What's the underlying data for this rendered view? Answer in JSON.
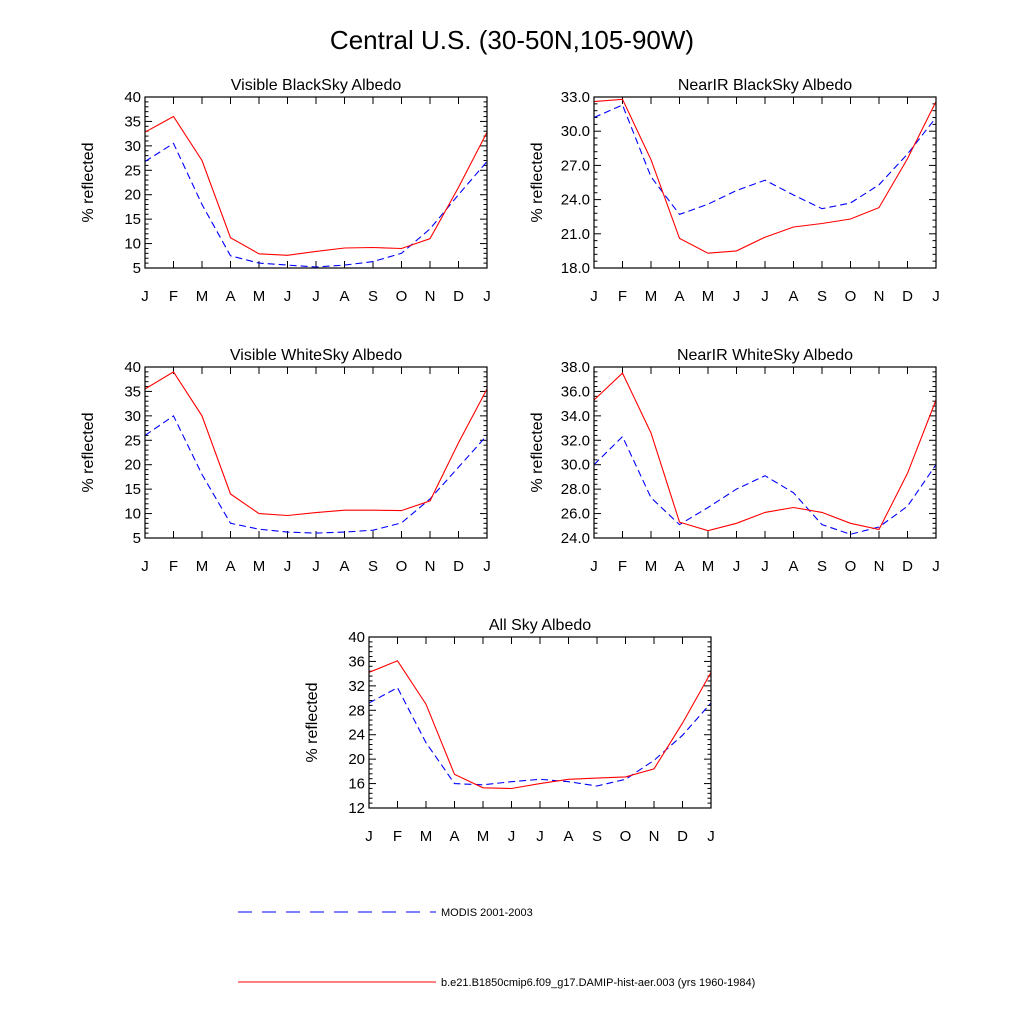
{
  "title": "Central U.S. (30-50N,105-90W)",
  "colors": {
    "model": "#ff0000",
    "obs": "#0000ff",
    "axis": "#000000"
  },
  "legend": [
    {
      "label": "MODIS 2001-2003",
      "style": "dashed",
      "color": "#0000ff"
    },
    {
      "label": "b.e21.B1850cmip6.f09_g17.DAMIP-hist-aer.003 (yrs 1960-1984)",
      "style": "solid",
      "color": "#ff0000"
    }
  ],
  "chart_data": [
    {
      "type": "line",
      "title": "Visible BlackSky Albedo",
      "ylabel": "% reflected",
      "xlabel": "",
      "categories": [
        "J",
        "F",
        "M",
        "A",
        "M",
        "J",
        "J",
        "A",
        "S",
        "O",
        "N",
        "D",
        "J"
      ],
      "ylim": [
        5,
        40
      ],
      "yticks": [
        "5",
        "10",
        "15",
        "20",
        "25",
        "30",
        "35",
        "40"
      ],
      "series": [
        {
          "name": "b.e21.B1850cmip6.f09_g17.DAMIP-hist-aer.003 (yrs 1960-1984)",
          "style": "solid",
          "color": "#ff0000",
          "values": [
            32.8,
            36.0,
            27.0,
            11.2,
            7.9,
            7.6,
            8.4,
            9.1,
            9.2,
            9.0,
            11.0,
            21.5,
            32.8
          ]
        },
        {
          "name": "MODIS 2001-2003",
          "style": "dashed",
          "color": "#0000ff",
          "values": [
            26.8,
            30.5,
            18.0,
            7.5,
            6.0,
            5.6,
            5.2,
            5.6,
            6.3,
            8.0,
            13.0,
            20.0,
            26.8
          ]
        }
      ]
    },
    {
      "type": "line",
      "title": "NearIR BlackSky Albedo",
      "ylabel": "% reflected",
      "xlabel": "",
      "categories": [
        "J",
        "F",
        "M",
        "A",
        "M",
        "J",
        "J",
        "A",
        "S",
        "O",
        "N",
        "D",
        "J"
      ],
      "ylim": [
        18,
        33
      ],
      "yticks": [
        "18.0",
        "21.0",
        "24.0",
        "27.0",
        "30.0",
        "33.0"
      ],
      "series": [
        {
          "name": "b.e21.B1850cmip6.f09_g17.DAMIP-hist-aer.003 (yrs 1960-1984)",
          "style": "solid",
          "color": "#ff0000",
          "values": [
            32.6,
            32.8,
            27.5,
            20.6,
            19.3,
            19.5,
            20.7,
            21.6,
            21.9,
            22.3,
            23.3,
            27.6,
            32.6
          ]
        },
        {
          "name": "MODIS 2001-2003",
          "style": "dashed",
          "color": "#0000ff",
          "values": [
            31.2,
            32.3,
            26.0,
            22.7,
            23.6,
            24.8,
            25.7,
            24.4,
            23.2,
            23.7,
            25.3,
            28.0,
            31.2
          ]
        }
      ]
    },
    {
      "type": "line",
      "title": "Visible WhiteSky Albedo",
      "ylabel": "% reflected",
      "xlabel": "",
      "categories": [
        "J",
        "F",
        "M",
        "A",
        "M",
        "J",
        "J",
        "A",
        "S",
        "O",
        "N",
        "D",
        "J"
      ],
      "ylim": [
        5,
        40
      ],
      "yticks": [
        "5",
        "10",
        "15",
        "20",
        "25",
        "30",
        "35",
        "40"
      ],
      "series": [
        {
          "name": "b.e21.B1850cmip6.f09_g17.DAMIP-hist-aer.003 (yrs 1960-1984)",
          "style": "solid",
          "color": "#ff0000",
          "values": [
            35.5,
            39.0,
            30.0,
            14.0,
            10.0,
            9.6,
            10.2,
            10.7,
            10.7,
            10.6,
            12.6,
            24.5,
            35.5
          ]
        },
        {
          "name": "MODIS 2001-2003",
          "style": "dashed",
          "color": "#0000ff",
          "values": [
            26.0,
            30.0,
            18.0,
            8.0,
            6.8,
            6.2,
            6.0,
            6.2,
            6.6,
            8.1,
            13.0,
            19.5,
            26.0
          ]
        }
      ]
    },
    {
      "type": "line",
      "title": "NearIR WhiteSky Albedo",
      "ylabel": "% reflected",
      "xlabel": "",
      "categories": [
        "J",
        "F",
        "M",
        "A",
        "M",
        "J",
        "J",
        "A",
        "S",
        "O",
        "N",
        "D",
        "J"
      ],
      "ylim": [
        24,
        38
      ],
      "yticks": [
        "24.0",
        "26.0",
        "28.0",
        "30.0",
        "32.0",
        "34.0",
        "36.0",
        "38.0"
      ],
      "series": [
        {
          "name": "b.e21.B1850cmip6.f09_g17.DAMIP-hist-aer.003 (yrs 1960-1984)",
          "style": "solid",
          "color": "#ff0000",
          "values": [
            35.3,
            37.5,
            32.6,
            25.3,
            24.6,
            25.2,
            26.1,
            26.5,
            26.1,
            25.2,
            24.7,
            29.3,
            35.3
          ]
        },
        {
          "name": "MODIS 2001-2003",
          "style": "dashed",
          "color": "#0000ff",
          "values": [
            30.0,
            32.3,
            27.3,
            25.1,
            26.5,
            28.0,
            29.1,
            27.7,
            25.1,
            24.3,
            24.9,
            26.6,
            30.0
          ]
        }
      ]
    },
    {
      "type": "line",
      "title": "All Sky Albedo",
      "ylabel": "% reflected",
      "xlabel": "",
      "categories": [
        "J",
        "F",
        "M",
        "A",
        "M",
        "J",
        "J",
        "A",
        "S",
        "O",
        "N",
        "D",
        "J"
      ],
      "ylim": [
        12,
        40
      ],
      "yticks": [
        "12",
        "16",
        "20",
        "24",
        "28",
        "32",
        "36",
        "40"
      ],
      "series": [
        {
          "name": "b.e21.B1850cmip6.f09_g17.DAMIP-hist-aer.003 (yrs 1960-1984)",
          "style": "solid",
          "color": "#ff0000",
          "values": [
            34.2,
            36.1,
            29.0,
            17.5,
            15.3,
            15.2,
            16.0,
            16.7,
            16.9,
            17.1,
            18.4,
            25.9,
            34.2
          ]
        },
        {
          "name": "MODIS 2001-2003",
          "style": "dashed",
          "color": "#0000ff",
          "values": [
            29.2,
            31.7,
            22.7,
            16.0,
            15.8,
            16.3,
            16.7,
            16.3,
            15.6,
            16.7,
            19.8,
            23.9,
            29.2
          ]
        }
      ]
    }
  ]
}
